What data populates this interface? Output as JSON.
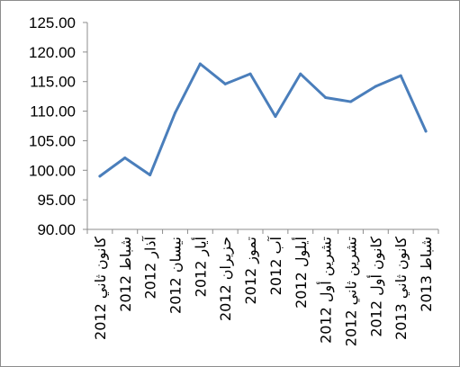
{
  "chart_data": {
    "type": "line",
    "title": "",
    "xlabel": "",
    "ylabel": "",
    "categories": [
      "كانون ثاني 2012",
      "شباط 2012",
      "آذار 2012",
      "نيسان 2012",
      "أيار 2012",
      "حزيران 2012",
      "تموز 2012",
      "آب 2012",
      "أيلول 2012",
      "تشرين أول 2012",
      "تشرين ثاني 2012",
      "كانون أول 2012",
      "كانون ثاني 2013",
      "شباط 2013"
    ],
    "series": [
      {
        "values": [
          99.0,
          102.1,
          99.2,
          109.7,
          118.0,
          114.6,
          116.3,
          109.1,
          116.3,
          112.3,
          111.6,
          114.2,
          116.0,
          106.6
        ],
        "color": "#4a7ebb"
      }
    ],
    "ylim": [
      90,
      125
    ],
    "yticks": [
      "90.00",
      "95.00",
      "100.00",
      "105.00",
      "110.00",
      "115.00",
      "120.00",
      "125.00"
    ],
    "grid": false,
    "legend": "none"
  }
}
